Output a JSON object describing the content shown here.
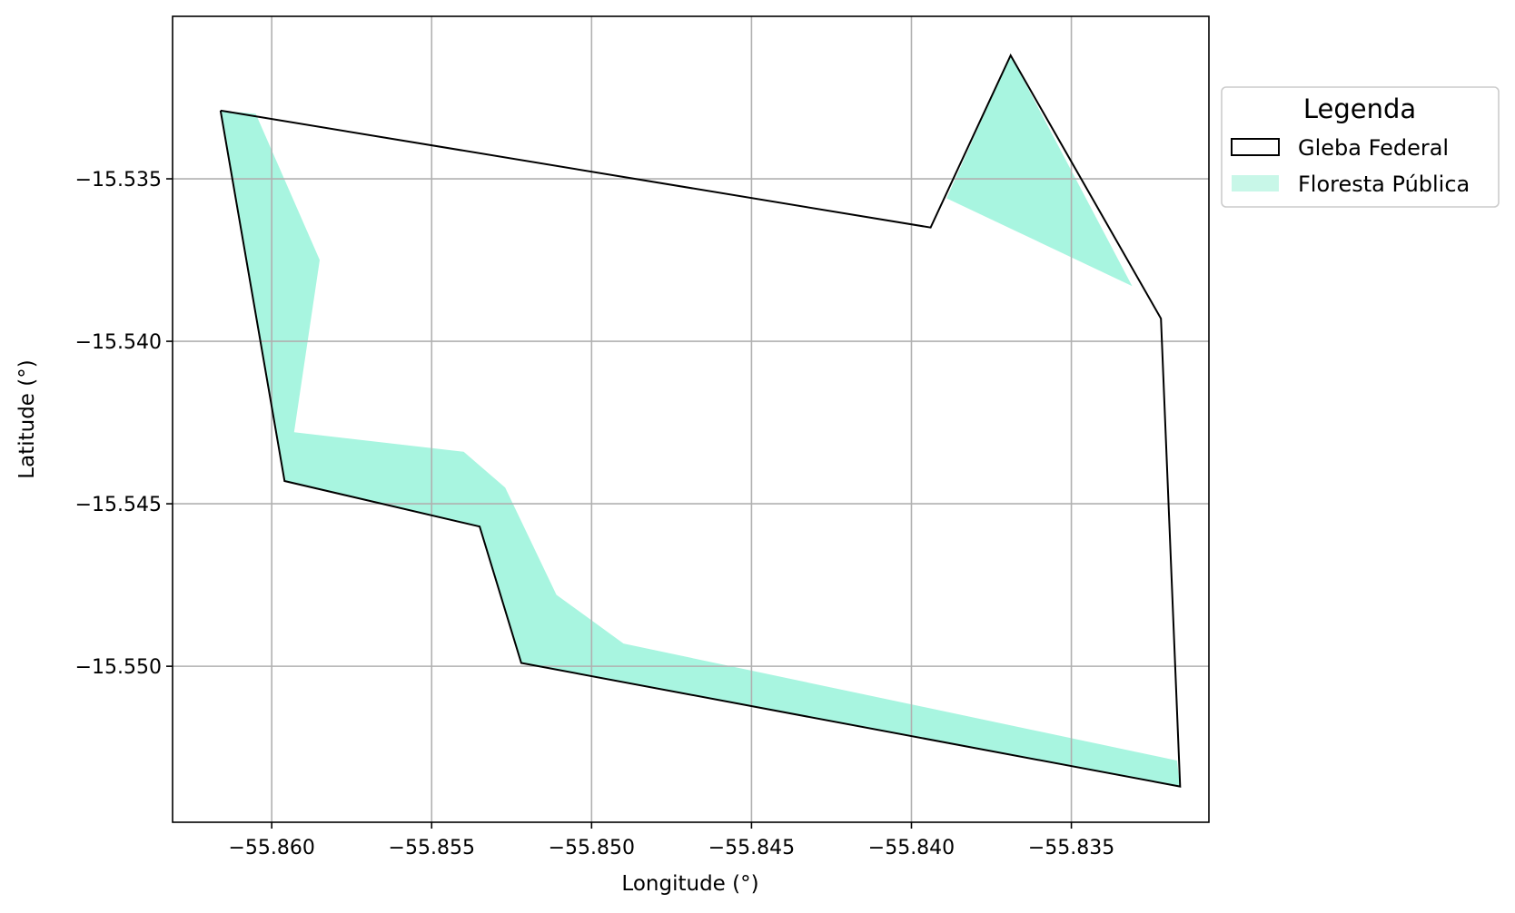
{
  "chart_data": {
    "type": "map",
    "xlabel": "Longitude (°)",
    "ylabel": "Latitude (°)",
    "xlim": [
      -55.8631,
      -55.8307
    ],
    "ylim": [
      -15.5548,
      -15.53
    ],
    "xticks": [
      -55.86,
      -55.855,
      -55.85,
      -55.845,
      -55.84,
      -55.835
    ],
    "yticks": [
      -15.535,
      -15.54,
      -15.545,
      -15.55
    ],
    "xtick_labels": [
      "−55.860",
      "−55.855",
      "−55.850",
      "−55.845",
      "−55.840",
      "−55.835"
    ],
    "ytick_labels": [
      "−15.535",
      "−15.540",
      "−15.545",
      "−15.550"
    ],
    "grid": true,
    "legend": {
      "title": "Legenda",
      "placement": "outside-right-top",
      "entries": [
        {
          "label": "Gleba Federal",
          "style": "outline",
          "color": "#000000"
        },
        {
          "label": "Floresta Pública",
          "style": "fill",
          "color": "#c8f7e8"
        }
      ]
    },
    "layers": [
      {
        "name": "Gleba Federal",
        "style": "outline",
        "edge_color": "#000000",
        "coordinates": [
          [
            -55.8616,
            -15.5329
          ],
          [
            -55.8394,
            -15.5365
          ],
          [
            -55.8369,
            -15.5312
          ],
          [
            -55.8322,
            -15.5393
          ],
          [
            -55.8316,
            -15.5537
          ],
          [
            -55.8522,
            -15.5499
          ],
          [
            -55.8535,
            -15.5457
          ],
          [
            -55.8596,
            -15.5443
          ],
          [
            -55.8616,
            -15.5329
          ]
        ]
      },
      {
        "name": "Floresta Pública",
        "style": "fill",
        "fill_color": "#a8f5e0",
        "polygons": [
          [
            [
              -55.8616,
              -15.5329
            ],
            [
              -55.8605,
              -15.533
            ],
            [
              -55.8585,
              -15.5375
            ],
            [
              -55.8593,
              -15.5428
            ],
            [
              -55.854,
              -15.5434
            ],
            [
              -55.8527,
              -15.5445
            ],
            [
              -55.8511,
              -15.5478
            ],
            [
              -55.849,
              -15.5493
            ],
            [
              -55.8317,
              -15.5529
            ],
            [
              -55.8316,
              -15.5537
            ],
            [
              -55.8522,
              -15.5499
            ],
            [
              -55.8535,
              -15.5457
            ],
            [
              -55.8596,
              -15.5443
            ]
          ],
          [
            [
              -55.8369,
              -15.5312
            ],
            [
              -55.8389,
              -15.5356
            ],
            [
              -55.8331,
              -15.5383
            ]
          ]
        ]
      }
    ]
  }
}
